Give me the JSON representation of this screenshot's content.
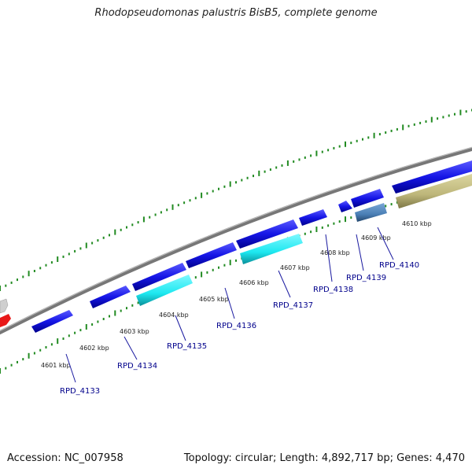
{
  "title": "Rhodopseudomonas palustris BisB5, complete genome",
  "accession": "Accession: NC_007958",
  "summary": "Topology: circular; Length: 4,892,717 bp; Genes: 4,470",
  "colors": {
    "backbone": "#888888",
    "tick": "#228b22",
    "gene_blue": "#1515e6",
    "gene_cyan": "#1de8f0",
    "gene_steel": "#4a7fb5",
    "gene_khaki": "#bdb67a",
    "gene_red": "#e81818",
    "gene_gray": "#c8c8c8",
    "label": "#00008b"
  },
  "scale_labels": [
    "4601 kbp",
    "4602 kbp",
    "4603 kbp",
    "4604 kbp",
    "4605 kbp",
    "4606 kbp",
    "4607 kbp",
    "4608 kbp",
    "4609 kbp",
    "4610 kbp"
  ],
  "gene_labels": [
    "RPD_4133",
    "RPD_4134",
    "RPD_4135",
    "RPD_4136",
    "RPD_4137",
    "RPD_4138",
    "RPD_4139",
    "RPD_4140"
  ]
}
